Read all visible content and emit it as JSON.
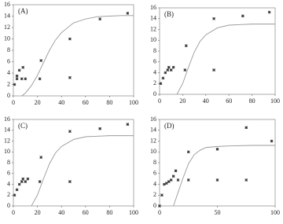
{
  "chart_data": [
    {
      "type": "scatter",
      "title": "(A)",
      "xlim": [
        0,
        100
      ],
      "ylim": [
        0,
        16
      ],
      "xticks": [
        0,
        20,
        40,
        60,
        80,
        100
      ],
      "yticks": [
        0,
        2,
        4,
        6,
        8,
        10,
        12,
        14,
        16
      ],
      "series": [
        {
          "type": "scatter",
          "color": "#333333",
          "x": [
            1,
            3,
            3,
            5,
            7,
            8,
            10,
            22,
            23,
            47,
            47,
            72,
            95
          ],
          "values": [
            2,
            3,
            3.5,
            4.5,
            3,
            5,
            3,
            3,
            6.2,
            3.2,
            10,
            13.5,
            14.5
          ]
        },
        {
          "type": "line",
          "color": "#999999",
          "x": [
            7,
            10,
            15,
            20,
            25,
            30,
            35,
            40,
            50,
            60,
            70,
            80,
            90,
            100
          ],
          "values": [
            0,
            0.5,
            1.8,
            3.6,
            5.8,
            8,
            9.8,
            11.1,
            12.8,
            13.5,
            13.9,
            14,
            14.1,
            14.1
          ]
        }
      ]
    },
    {
      "type": "scatter",
      "title": "(B)",
      "xlim": [
        0,
        100
      ],
      "ylim": [
        0,
        16
      ],
      "xticks": [
        0,
        20,
        40,
        60,
        80,
        100
      ],
      "yticks": [
        0,
        2,
        4,
        6,
        8,
        10,
        12,
        14,
        16
      ],
      "series": [
        {
          "type": "scatter",
          "color": "#333333",
          "x": [
            1,
            3,
            5,
            7,
            8,
            10,
            12,
            22,
            23,
            47,
            47,
            72,
            95
          ],
          "values": [
            2,
            3,
            4,
            4.5,
            5,
            4.5,
            5,
            4.5,
            9,
            4.5,
            14,
            14.5,
            15.2
          ]
        },
        {
          "type": "line",
          "color": "#999999",
          "x": [
            15,
            20,
            25,
            30,
            35,
            40,
            50,
            60,
            70,
            80,
            90,
            100
          ],
          "values": [
            0,
            2,
            5,
            7.8,
            9.8,
            11,
            12.3,
            12.8,
            12.9,
            13,
            13,
            13
          ]
        }
      ]
    },
    {
      "type": "scatter",
      "title": "(C)",
      "xlim": [
        0,
        100
      ],
      "ylim": [
        0,
        16
      ],
      "xticks": [
        0,
        20,
        40,
        60,
        80,
        100
      ],
      "yticks": [
        0,
        2,
        4,
        6,
        8,
        10,
        12,
        14,
        16
      ],
      "series": [
        {
          "type": "scatter",
          "color": "#333333",
          "x": [
            1,
            3,
            5,
            7,
            8,
            10,
            12,
            22,
            23,
            47,
            47,
            72,
            95
          ],
          "values": [
            2,
            3,
            4,
            4.5,
            5,
            4.5,
            5,
            4.5,
            9,
            4.5,
            13.8,
            14.3,
            15.1
          ]
        },
        {
          "type": "line",
          "color": "#999999",
          "x": [
            15,
            20,
            25,
            30,
            35,
            40,
            50,
            60,
            70,
            80,
            90,
            100
          ],
          "values": [
            0,
            2,
            5,
            7.8,
            9.8,
            11,
            12.3,
            12.8,
            12.9,
            13,
            13,
            13
          ]
        }
      ]
    },
    {
      "type": "scatter",
      "title": "(D)",
      "xlim": [
        0,
        100
      ],
      "ylim": [
        0,
        16
      ],
      "xticks": [
        0,
        50,
        100
      ],
      "yticks": [
        0,
        2,
        4,
        6,
        8,
        10,
        12,
        14,
        16
      ],
      "series": [
        {
          "type": "scatter",
          "color": "#333333",
          "x": [
            0,
            2,
            4,
            6,
            8,
            10,
            12,
            14,
            16,
            25,
            25,
            50,
            50,
            75,
            75,
            97
          ],
          "values": [
            0,
            2,
            4,
            4.2,
            4.5,
            4.8,
            5.5,
            6.5,
            4.8,
            10,
            4.8,
            10.5,
            4.8,
            14.5,
            4.8,
            12
          ]
        },
        {
          "type": "line",
          "color": "#999999",
          "x": [
            12,
            16,
            20,
            25,
            30,
            35,
            40,
            50,
            60,
            80,
            100
          ],
          "values": [
            0,
            2.5,
            5,
            7.8,
            9.5,
            10.3,
            10.8,
            11,
            11.1,
            11.2,
            11.2
          ]
        }
      ]
    }
  ]
}
